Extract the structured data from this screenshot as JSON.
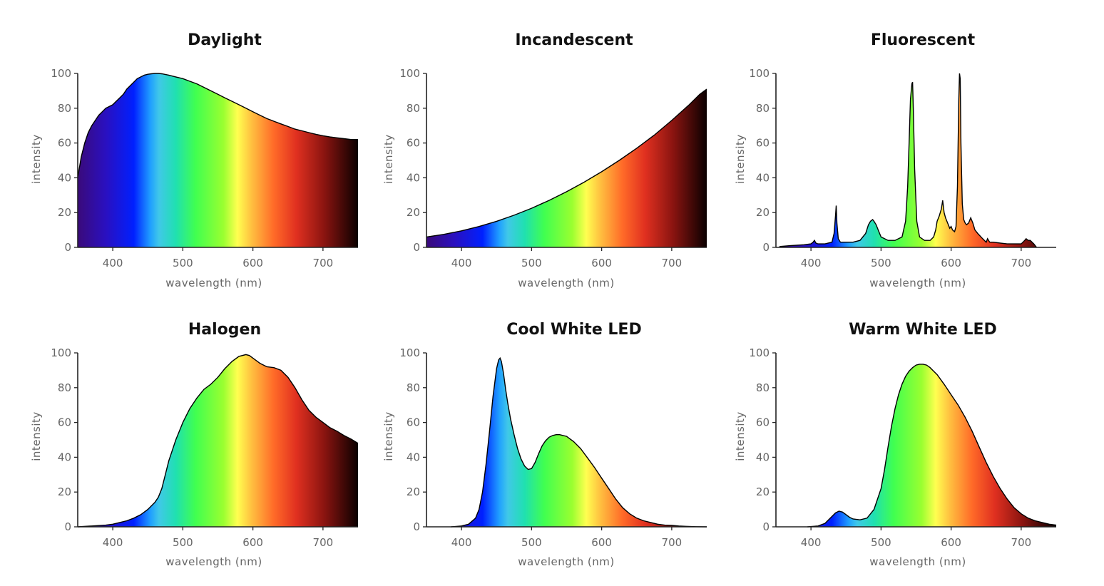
{
  "chart_data": [
    {
      "type": "area",
      "title": "Daylight",
      "xlabel": "wavelength (nm)",
      "ylabel": "intensity",
      "xlim": [
        350,
        750
      ],
      "ylim": [
        0,
        100
      ],
      "xticks": [
        400,
        500,
        600,
        700
      ],
      "yticks": [
        0,
        20,
        40,
        60,
        80,
        100
      ],
      "x": [
        350,
        355,
        360,
        365,
        370,
        375,
        380,
        385,
        390,
        395,
        400,
        405,
        410,
        415,
        420,
        425,
        430,
        435,
        440,
        445,
        450,
        455,
        460,
        465,
        470,
        480,
        490,
        500,
        510,
        520,
        530,
        540,
        550,
        560,
        570,
        580,
        590,
        600,
        610,
        620,
        630,
        640,
        650,
        660,
        670,
        680,
        690,
        700,
        710,
        720,
        730,
        740,
        750
      ],
      "y": [
        40,
        52,
        60,
        66,
        70,
        73,
        76,
        78,
        80,
        81,
        82,
        84,
        86,
        88,
        91,
        93,
        95,
        97,
        98,
        99,
        99.5,
        99.8,
        100,
        100,
        99.8,
        99,
        98,
        97,
        95.5,
        94,
        92,
        90,
        88,
        86,
        84,
        82,
        80,
        78,
        76,
        74,
        72.5,
        71,
        69.5,
        68,
        67,
        66,
        65,
        64.2,
        63.5,
        63,
        62.5,
        62,
        62
      ]
    },
    {
      "type": "area",
      "title": "Incandescent",
      "xlabel": "wavelength (nm)",
      "ylabel": "intensity",
      "xlim": [
        350,
        750
      ],
      "ylim": [
        0,
        100
      ],
      "xticks": [
        400,
        500,
        600,
        700
      ],
      "yticks": [
        0,
        20,
        40,
        60,
        80,
        100
      ],
      "x": [
        350,
        375,
        400,
        425,
        450,
        475,
        500,
        525,
        550,
        575,
        600,
        625,
        650,
        675,
        700,
        725,
        740,
        750
      ],
      "y": [
        6,
        7.5,
        9.5,
        12,
        15,
        18.5,
        22.5,
        27,
        32,
        37.5,
        43.5,
        50,
        57,
        64.5,
        73,
        82,
        88,
        91
      ]
    },
    {
      "type": "area",
      "title": "Fluorescent",
      "xlabel": "wavelength (nm)",
      "ylabel": "intensity",
      "xlim": [
        350,
        750
      ],
      "ylim": [
        0,
        100
      ],
      "xticks": [
        400,
        500,
        600,
        700
      ],
      "yticks": [
        0,
        20,
        40,
        60,
        80,
        100
      ],
      "x": [
        355,
        370,
        390,
        400,
        403,
        405,
        407,
        410,
        420,
        430,
        433,
        435,
        436,
        437,
        439,
        442,
        450,
        460,
        470,
        478,
        482,
        485,
        488,
        490,
        493,
        496,
        500,
        510,
        520,
        530,
        535,
        538,
        540,
        542,
        544,
        545,
        546,
        548,
        551,
        555,
        562,
        570,
        575,
        578,
        580,
        583,
        586,
        588,
        590,
        592,
        595,
        598,
        600,
        602,
        605,
        607,
        609,
        611,
        612,
        613,
        614,
        616,
        618,
        620,
        622,
        625,
        628,
        631,
        634,
        638,
        645,
        650,
        652,
        655,
        660,
        670,
        680,
        690,
        700,
        705,
        707,
        710,
        713,
        718,
        722
      ],
      "y": [
        0.5,
        1,
        1.5,
        2,
        3,
        4,
        2.5,
        2,
        2,
        3,
        8,
        18,
        24,
        14,
        5,
        3,
        3,
        3,
        4,
        8,
        13,
        15,
        16,
        15,
        13,
        10,
        6,
        4,
        4,
        6,
        15,
        35,
        60,
        85,
        94,
        95,
        80,
        45,
        15,
        6,
        4,
        4,
        6,
        10,
        15,
        18,
        22,
        27,
        20,
        17,
        14,
        11,
        12,
        10,
        9,
        12,
        35,
        85,
        100,
        97,
        60,
        25,
        16,
        14,
        13,
        14,
        17,
        14,
        10,
        8,
        5,
        3,
        5,
        3,
        3,
        2.5,
        2,
        2,
        2,
        4,
        5,
        4,
        4,
        2,
        0
      ]
    },
    {
      "type": "area",
      "title": "Halogen",
      "xlabel": "wavelength (nm)",
      "ylabel": "intensity",
      "xlim": [
        350,
        750
      ],
      "ylim": [
        0,
        100
      ],
      "xticks": [
        400,
        500,
        600,
        700
      ],
      "yticks": [
        0,
        20,
        40,
        60,
        80,
        100
      ],
      "x": [
        350,
        370,
        390,
        400,
        410,
        420,
        430,
        440,
        450,
        460,
        465,
        470,
        475,
        480,
        490,
        500,
        510,
        520,
        530,
        540,
        550,
        560,
        570,
        580,
        590,
        595,
        600,
        610,
        620,
        630,
        640,
        650,
        660,
        670,
        680,
        690,
        700,
        710,
        720,
        730,
        740,
        750
      ],
      "y": [
        0,
        0.5,
        1,
        1.5,
        2.5,
        3.5,
        5,
        7,
        10,
        14,
        17,
        22,
        30,
        38,
        50,
        60,
        68,
        74,
        79,
        82,
        86,
        91,
        95,
        98,
        99,
        98.5,
        97,
        94,
        92,
        91.5,
        90,
        86,
        80,
        73,
        67,
        63,
        60,
        57,
        55,
        52.5,
        50.5,
        48
      ]
    },
    {
      "type": "area",
      "title": "Cool White LED",
      "xlabel": "wavelength (nm)",
      "ylabel": "intensity",
      "xlim": [
        350,
        750
      ],
      "ylim": [
        0,
        100
      ],
      "xticks": [
        400,
        500,
        600,
        700
      ],
      "yticks": [
        0,
        20,
        40,
        60,
        80,
        100
      ],
      "x": [
        385,
        400,
        410,
        420,
        425,
        430,
        435,
        440,
        445,
        450,
        453,
        455,
        457,
        460,
        463,
        466,
        470,
        475,
        480,
        485,
        490,
        495,
        500,
        505,
        510,
        515,
        520,
        525,
        530,
        535,
        540,
        545,
        550,
        555,
        560,
        570,
        580,
        590,
        600,
        610,
        620,
        630,
        640,
        650,
        660,
        670,
        680,
        690,
        700,
        710,
        720,
        735,
        750
      ],
      "y": [
        0,
        0.5,
        1.5,
        5,
        10,
        20,
        36,
        55,
        75,
        91,
        96,
        97,
        95,
        88,
        79,
        71,
        62,
        53,
        45,
        39,
        35,
        33,
        33.5,
        37,
        42,
        46.5,
        49.5,
        51.5,
        52.5,
        53,
        53,
        52.5,
        52,
        50.5,
        49,
        45,
        39.5,
        34,
        28,
        22,
        16,
        11,
        7.5,
        5,
        3.5,
        2.5,
        1.5,
        1,
        0.8,
        0.5,
        0.3,
        0.1,
        0
      ]
    },
    {
      "type": "area",
      "title": "Warm White LED",
      "xlabel": "wavelength (nm)",
      "ylabel": "intensity",
      "xlim": [
        350,
        750
      ],
      "ylim": [
        0,
        100
      ],
      "xticks": [
        400,
        500,
        600,
        700
      ],
      "yticks": [
        0,
        20,
        40,
        60,
        80,
        100
      ],
      "x": [
        395,
        410,
        420,
        425,
        430,
        435,
        440,
        445,
        450,
        455,
        460,
        470,
        480,
        490,
        500,
        505,
        510,
        515,
        520,
        525,
        530,
        535,
        540,
        545,
        550,
        555,
        560,
        565,
        570,
        575,
        580,
        590,
        600,
        610,
        620,
        630,
        640,
        650,
        660,
        670,
        680,
        690,
        700,
        710,
        720,
        730,
        740,
        750
      ],
      "y": [
        0,
        0.5,
        2,
        4,
        6,
        8,
        9,
        8.5,
        7,
        5.5,
        4.5,
        4,
        5,
        10,
        22,
        33,
        46,
        58,
        68,
        76,
        82,
        86.5,
        89.5,
        91.5,
        93,
        93.5,
        93.5,
        93,
        91.5,
        89.5,
        87.5,
        82,
        76,
        70,
        63,
        55,
        46,
        37,
        29,
        22,
        16,
        11,
        7.5,
        5,
        3.5,
        2.5,
        1.5,
        1
      ]
    }
  ]
}
